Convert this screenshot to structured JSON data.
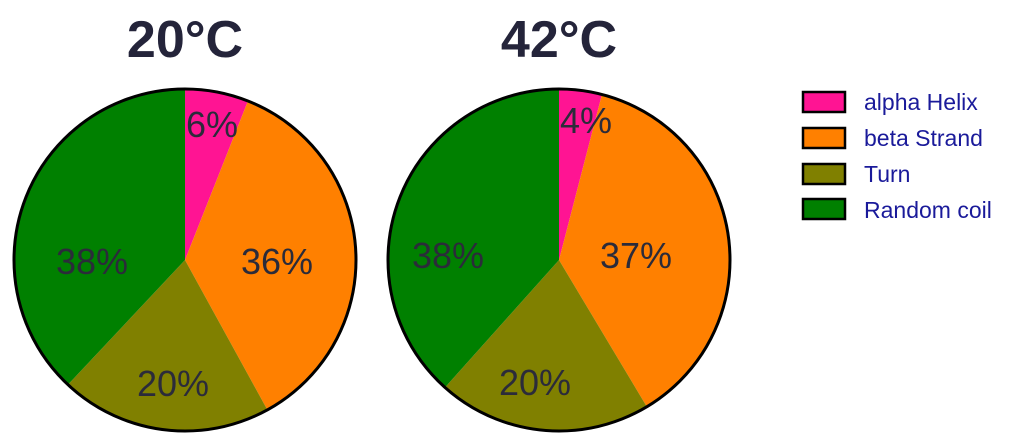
{
  "colors": {
    "alpha_helix": "#ff1493",
    "beta_strand": "#ff8000",
    "turn": "#808000",
    "random_coil": "#008000",
    "title_text": "#24243a",
    "label_text": "#2b2b3a",
    "legend_text": "#1a1a9a"
  },
  "chart_data": [
    {
      "type": "pie",
      "title": "20°C",
      "categories": [
        "alpha Helix",
        "beta Strand",
        "Turn",
        "Random coil"
      ],
      "values": [
        6,
        36,
        20,
        38
      ],
      "labels": [
        "6%",
        "36%",
        "20%",
        "38%"
      ]
    },
    {
      "type": "pie",
      "title": "42°C",
      "categories": [
        "alpha Helix",
        "beta Strand",
        "Turn",
        "Random coil"
      ],
      "values": [
        4,
        37,
        20,
        38
      ],
      "labels": [
        "4%",
        "37%",
        "20%",
        "38%"
      ]
    }
  ],
  "legend": {
    "placement": "right",
    "items": [
      {
        "label": "alpha Helix",
        "color": "#ff1493"
      },
      {
        "label": "beta Strand",
        "color": "#ff8000"
      },
      {
        "label": "Turn",
        "color": "#808000"
      },
      {
        "label": "Random coil",
        "color": "#008000"
      }
    ]
  }
}
